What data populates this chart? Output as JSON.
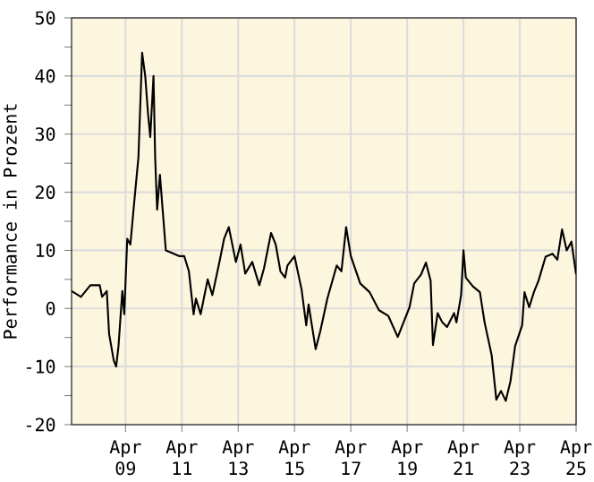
{
  "chart_data": {
    "type": "line",
    "ylabel": "Performance in Prozent",
    "x": [
      "2007-05",
      "2007-09",
      "2008-01",
      "2008-05",
      "2008-06",
      "2008-08",
      "2008-09",
      "2008-11",
      "2008-12",
      "2009-01",
      "2009-02-20",
      "2009-03-15",
      "2009-04-23",
      "2009-06-03",
      "2009-07-27",
      "2009-09-16",
      "2009-11-03",
      "2009-12-13",
      "2010-01-19",
      "2010-02-17",
      "2010-03-29",
      "2010-04-20",
      "2010-05-15",
      "2010-06-21",
      "2010-09-06",
      "2010-12-06",
      "2011-03",
      "2011-05",
      "2011-07",
      "2011-09",
      "2011-10",
      "2011-12",
      "2012-03",
      "2012-05",
      "2012-08",
      "2012-10",
      "2012-12",
      "2013-03",
      "2013-05",
      "2013-07",
      "2013-10",
      "2014-01",
      "2014-03",
      "2014-06",
      "2014-08",
      "2014-10",
      "2014-12",
      "2015-01",
      "2015-04",
      "2015-07",
      "2015-09",
      "2015-10",
      "2016-01",
      "2016-03",
      "2016-06",
      "2016-10",
      "2016-12",
      "2017-02",
      "2017-04",
      "2017-08",
      "2017-12",
      "2018-04",
      "2018-08",
      "2018-12",
      "2019-05",
      "2019-07",
      "2019-10",
      "2019-12",
      "2020-02",
      "2020-03",
      "2020-05",
      "2020-07",
      "2020-09",
      "2020-12",
      "2021-01",
      "2021-03",
      "2021-04",
      "2021-05",
      "2021-08",
      "2021-11",
      "2022-01",
      "2022-04",
      "2022-06",
      "2022-08",
      "2022-10",
      "2022-12",
      "2023-02",
      "2023-05",
      "2023-06",
      "2023-08",
      "2023-10",
      "2023-12",
      "2024-03",
      "2024-06",
      "2024-08",
      "2024-10",
      "2024-12",
      "2025-02",
      "2025-04"
    ],
    "series": [
      {
        "color": "#000000",
        "values": [
          3,
          2,
          4,
          4,
          2,
          3,
          -4.4,
          -9,
          -10,
          -6.5,
          3,
          -1,
          12,
          11,
          19,
          26,
          44,
          40,
          33.5,
          29.5,
          40,
          26,
          17,
          23,
          10,
          9.5,
          9,
          9,
          6.4,
          -1,
          1.7,
          -1,
          5,
          2.3,
          8,
          12,
          14,
          8,
          11,
          6,
          8,
          4,
          6.9,
          13,
          11,
          6.4,
          5.3,
          7.4,
          9,
          3.3,
          -2.9,
          0.7,
          -7,
          -3.9,
          1.7,
          7.4,
          6.4,
          14,
          9,
          4.3,
          2.8,
          -0.3,
          -1.3,
          -4.9,
          0.2,
          4.3,
          5.9,
          7.9,
          4.8,
          -6.3,
          -0.8,
          -2.4,
          -3.2,
          -0.8,
          -2.4,
          2.3,
          10,
          5.3,
          3.8,
          2.8,
          -2.4,
          -8,
          -15.7,
          -14.2,
          -15.9,
          -12.6,
          -6.5,
          -2.9,
          2.8,
          0.2,
          2.8,
          4.8,
          8.9,
          9.4,
          8.4,
          13.6,
          10,
          11.5,
          5.9
        ]
      }
    ],
    "xlim": [
      "2007-05",
      "2025-04"
    ],
    "xticks": [
      {
        "value": "2009-04",
        "label": "Apr 09"
      },
      {
        "value": "2011-04",
        "label": "Apr 11"
      },
      {
        "value": "2013-04",
        "label": "Apr 13"
      },
      {
        "value": "2015-04",
        "label": "Apr 15"
      },
      {
        "value": "2017-04",
        "label": "Apr 17"
      },
      {
        "value": "2019-04",
        "label": "Apr 19"
      },
      {
        "value": "2021-04",
        "label": "Apr 21"
      },
      {
        "value": "2023-04",
        "label": "Apr 23"
      },
      {
        "value": "2025-04",
        "label": "Apr 25"
      }
    ],
    "ylim": [
      -20,
      50
    ],
    "yticks": [
      -20,
      {
        "value": -15,
        "label": null
      },
      -10,
      {
        "value": -5,
        "label": null
      },
      0,
      {
        "value": 5,
        "label": null
      },
      10,
      {
        "value": 15,
        "label": null
      },
      20,
      {
        "value": 25,
        "label": null
      },
      30,
      {
        "value": 35,
        "label": null
      },
      40,
      {
        "value": 45,
        "label": null
      },
      50
    ],
    "grid": true,
    "marker": "none",
    "line_style": "solid"
  }
}
